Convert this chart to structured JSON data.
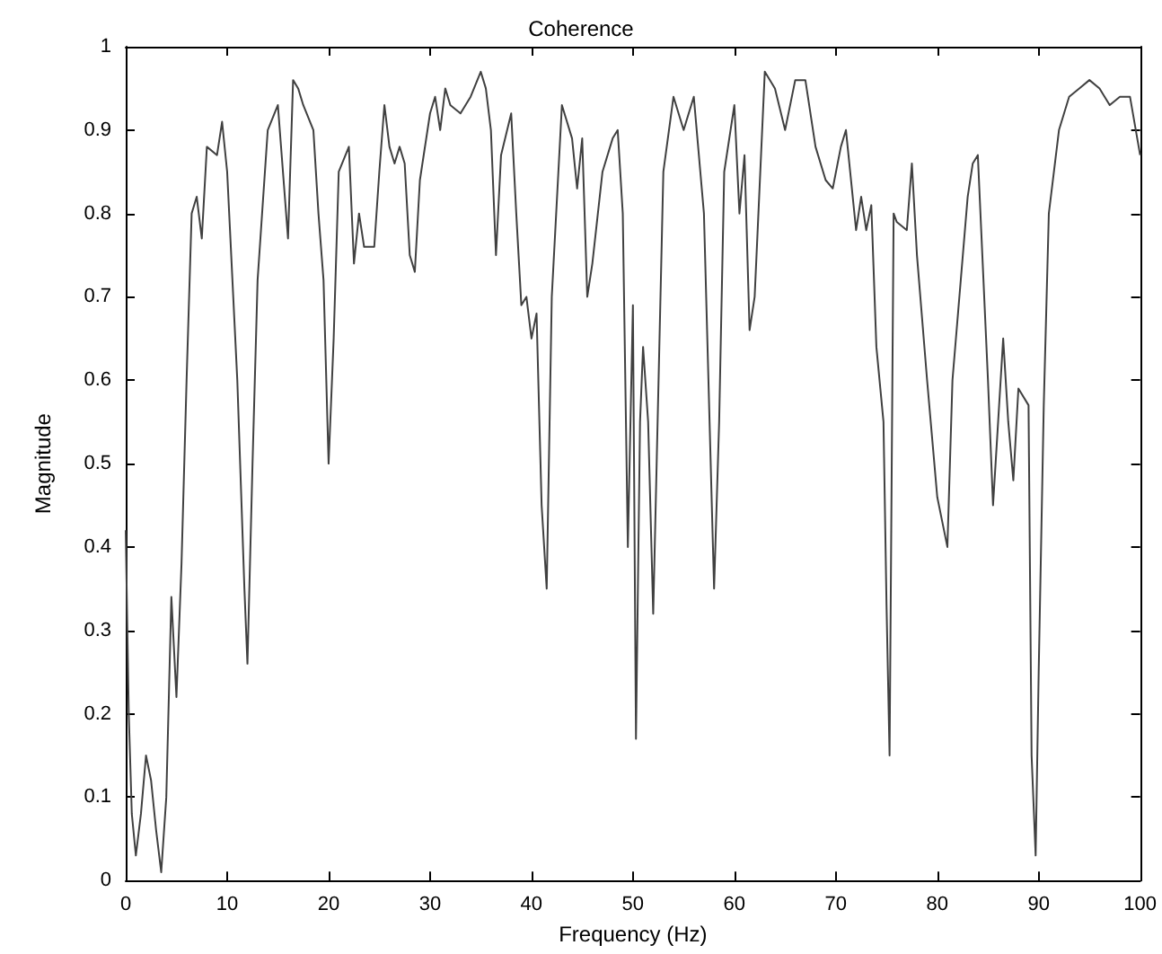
{
  "chart_data": {
    "type": "line",
    "title": "Coherence",
    "xlabel": "Frequency (Hz)",
    "ylabel": "Magnitude",
    "x": [
      0,
      0.3,
      0.6,
      1,
      1.5,
      2,
      2.5,
      3,
      3.5,
      4,
      4.5,
      5,
      5.5,
      6,
      6.5,
      7,
      7.5,
      8,
      9,
      9.5,
      10,
      11,
      11.7,
      12,
      12.5,
      13,
      14,
      15,
      16,
      16.5,
      17,
      17.5,
      18.5,
      19,
      19.5,
      20,
      20.5,
      21,
      22,
      22.5,
      23,
      23.5,
      24.5,
      25,
      25.5,
      26,
      26.5,
      27,
      27.5,
      28,
      28.5,
      29,
      30,
      30.5,
      31,
      31.5,
      32,
      33,
      34,
      35,
      35.5,
      36,
      36.5,
      37,
      38,
      38.5,
      39,
      39.5,
      40,
      40.5,
      41,
      41.5,
      42,
      43,
      44,
      44.5,
      45,
      45.5,
      46,
      47,
      48,
      48.5,
      49,
      49.5,
      50,
      50.3,
      50.7,
      51,
      51.5,
      52,
      53,
      54,
      55,
      56,
      57,
      58,
      58.5,
      59,
      60,
      60.5,
      61,
      61.5,
      62,
      63,
      64,
      65,
      66,
      67,
      68,
      69,
      69.7,
      70.5,
      71,
      72,
      72.5,
      73,
      73.5,
      74,
      74.7,
      75,
      75.3,
      75.7,
      76,
      77,
      77.5,
      78,
      79,
      80,
      80.5,
      81,
      81.5,
      83,
      83.5,
      84,
      85,
      85.5,
      86,
      86.5,
      87,
      87.5,
      88,
      89,
      89.3,
      89.7,
      90,
      90.5,
      91,
      92,
      92.5,
      93,
      94,
      95,
      96,
      97,
      98,
      99,
      100
    ],
    "series": [
      {
        "color": "#404040",
        "values": [
          0.42,
          0.2,
          0.08,
          0.03,
          0.08,
          0.15,
          0.12,
          0.06,
          0.01,
          0.1,
          0.34,
          0.22,
          0.38,
          0.6,
          0.8,
          0.82,
          0.77,
          0.88,
          0.87,
          0.91,
          0.85,
          0.6,
          0.35,
          0.26,
          0.5,
          0.72,
          0.9,
          0.93,
          0.77,
          0.96,
          0.95,
          0.93,
          0.9,
          0.8,
          0.72,
          0.5,
          0.65,
          0.85,
          0.88,
          0.74,
          0.8,
          0.76,
          0.76,
          0.85,
          0.93,
          0.88,
          0.86,
          0.88,
          0.86,
          0.75,
          0.73,
          0.84,
          0.92,
          0.94,
          0.9,
          0.95,
          0.93,
          0.92,
          0.94,
          0.97,
          0.95,
          0.9,
          0.75,
          0.87,
          0.92,
          0.8,
          0.69,
          0.7,
          0.65,
          0.68,
          0.45,
          0.35,
          0.7,
          0.93,
          0.89,
          0.83,
          0.89,
          0.7,
          0.74,
          0.85,
          0.89,
          0.9,
          0.8,
          0.4,
          0.69,
          0.17,
          0.55,
          0.64,
          0.55,
          0.32,
          0.85,
          0.94,
          0.9,
          0.94,
          0.8,
          0.35,
          0.55,
          0.85,
          0.93,
          0.8,
          0.87,
          0.66,
          0.7,
          0.97,
          0.95,
          0.9,
          0.96,
          0.96,
          0.88,
          0.84,
          0.83,
          0.88,
          0.9,
          0.78,
          0.82,
          0.78,
          0.81,
          0.64,
          0.55,
          0.33,
          0.15,
          0.8,
          0.79,
          0.78,
          0.86,
          0.75,
          0.6,
          0.46,
          0.43,
          0.4,
          0.6,
          0.82,
          0.86,
          0.87,
          0.6,
          0.45,
          0.55,
          0.65,
          0.55,
          0.48,
          0.59,
          0.57,
          0.15,
          0.03,
          0.25,
          0.57,
          0.8,
          0.9,
          0.92,
          0.94,
          0.95,
          0.96,
          0.95,
          0.93,
          0.94,
          0.94,
          0.87
        ]
      }
    ],
    "xlim": [
      0,
      100
    ],
    "xticks": [
      0,
      10,
      20,
      30,
      40,
      50,
      60,
      70,
      80,
      90,
      100
    ],
    "ylim": [
      0,
      1
    ],
    "yticks": [
      0,
      0.1,
      0.2,
      0.3,
      0.4,
      0.5,
      0.6,
      0.7,
      0.8,
      0.9,
      1
    ],
    "marker": "none",
    "line_style": "solid"
  }
}
